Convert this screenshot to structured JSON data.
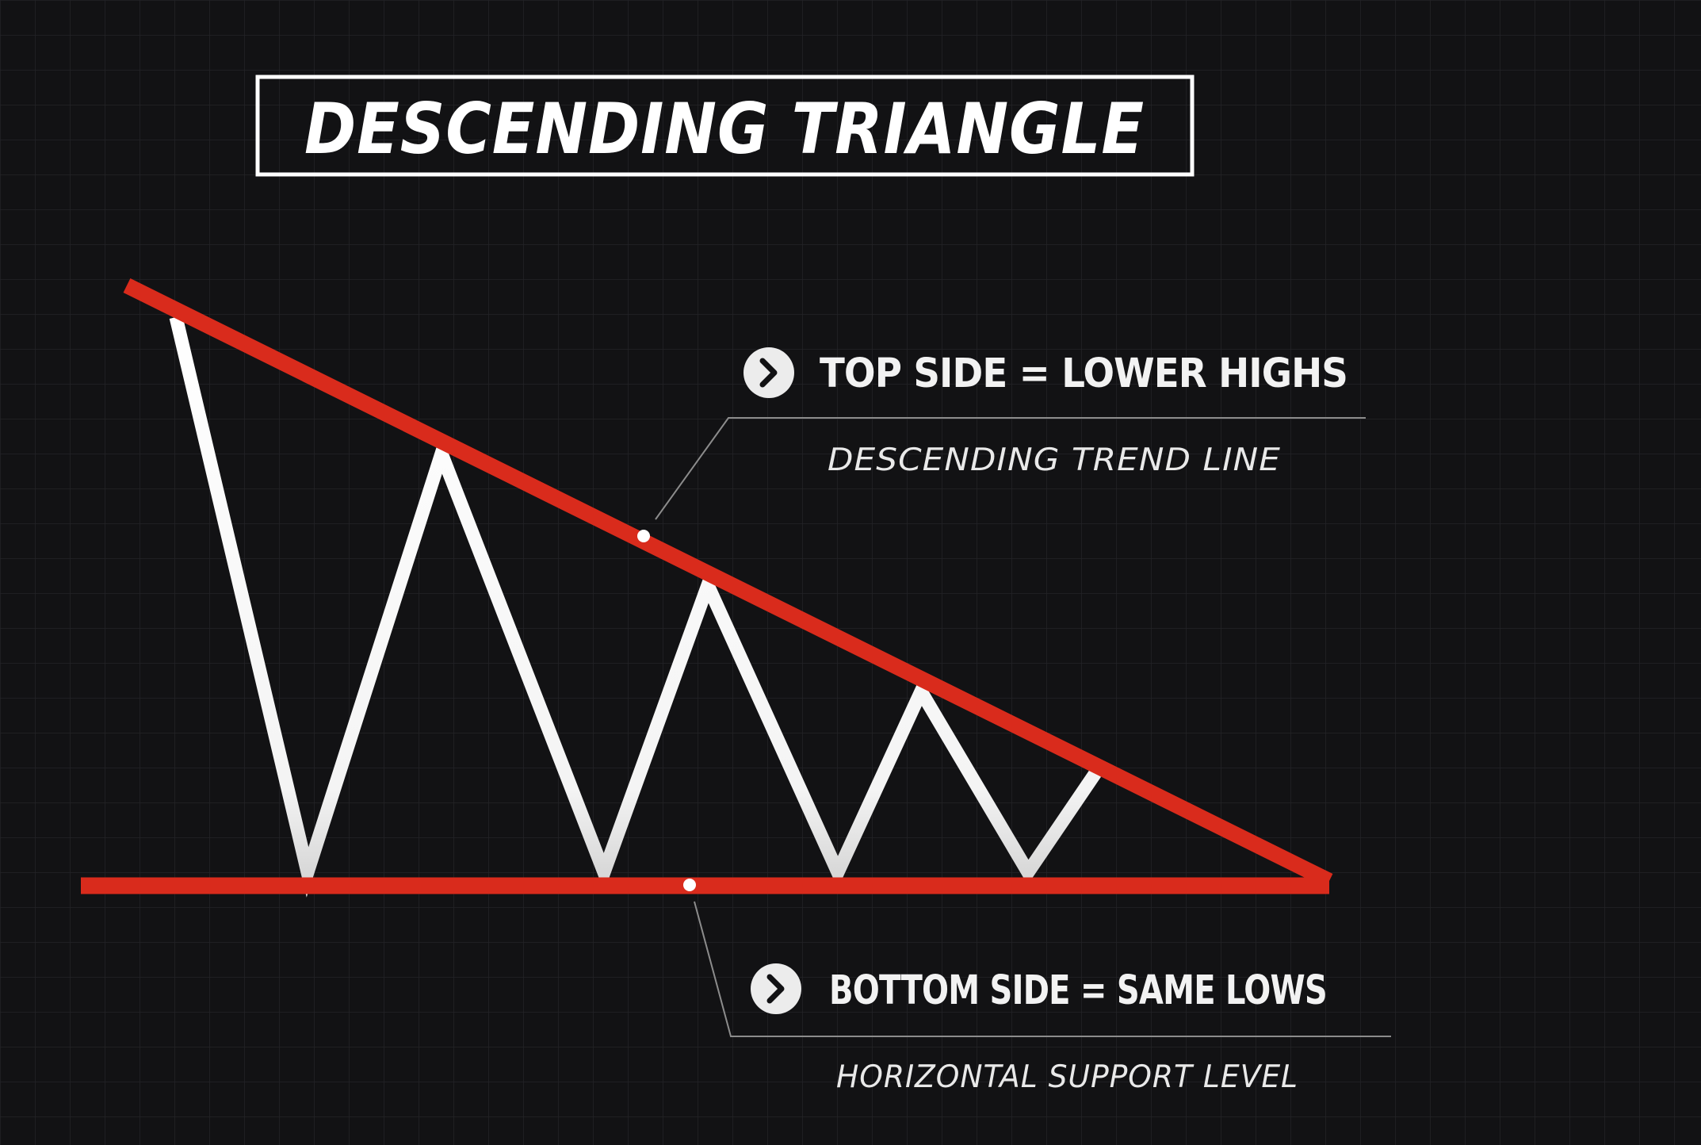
{
  "title": "DESCENDING TRIANGLE",
  "annotations": {
    "top": {
      "heading": "TOP SIDE = LOWER HIGHS",
      "subheading": "DESCENDING TREND LINE",
      "bullet_icon": "chevron-right-icon"
    },
    "bottom": {
      "heading": "BOTTOM SIDE = SAME  LOWS",
      "subheading": "HORIZONTAL SUPPORT LEVEL",
      "bullet_icon": "chevron-right-icon"
    }
  },
  "colors": {
    "background": "#121214",
    "grid": "#26262a",
    "trend_line": "#d92b1c",
    "price_line": "#ffffff",
    "text": "#ffffff"
  }
}
